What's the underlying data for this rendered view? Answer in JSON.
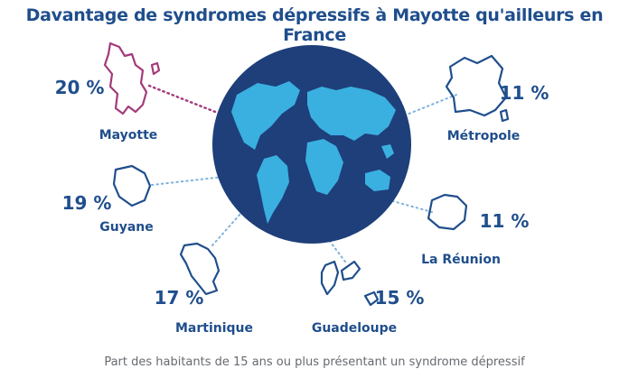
{
  "title": "Davantage de syndromes dépressifs à Mayotte qu'ailleurs en France",
  "caption": "Part des habitants de 15 ans ou plus présentant un syndrome dépressif",
  "colors": {
    "navy": "#1f4e8c",
    "globe": "#1e3f7a",
    "land": "#3ab0e0",
    "highlight": "#a23a7a",
    "dots": "#7fb2dd"
  },
  "chart_data": {
    "type": "bar",
    "unit": "%",
    "categories": [
      "Mayotte",
      "Métropole",
      "Guyane",
      "La Réunion",
      "Martinique",
      "Guadeloupe"
    ],
    "values": [
      20,
      11,
      19,
      11,
      17,
      15
    ],
    "value_labels": [
      "20 %",
      "11 %",
      "19 %",
      "11 %",
      "17 %",
      "15 %"
    ],
    "highlight": "Mayotte"
  }
}
